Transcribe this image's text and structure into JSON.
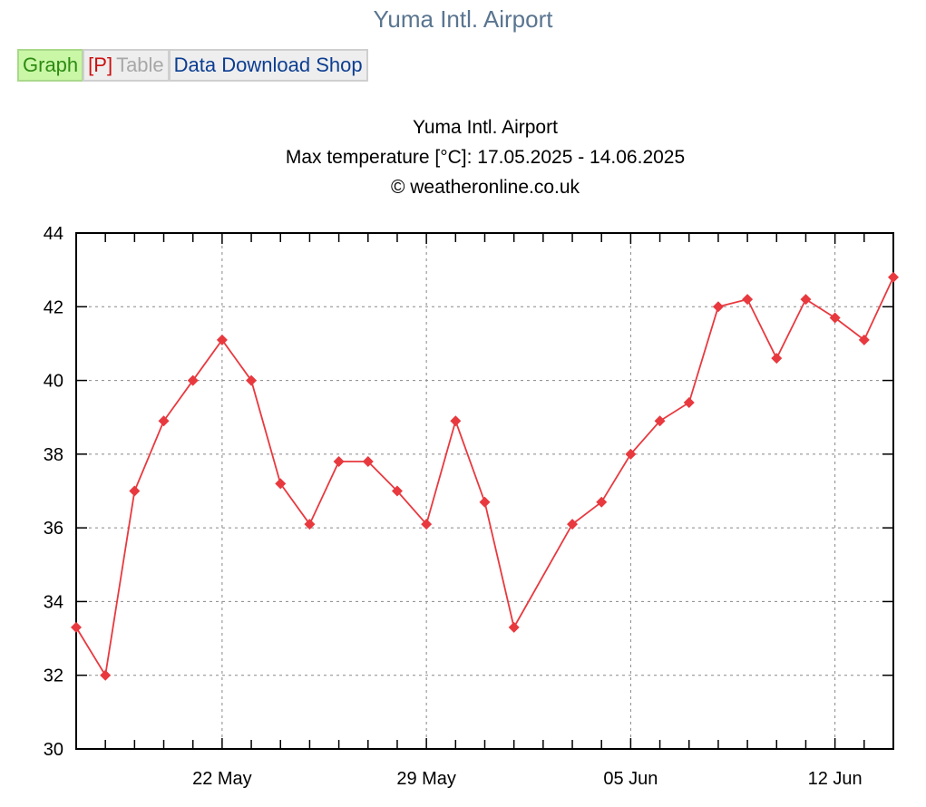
{
  "page": {
    "title": "Yuma Intl. Airport"
  },
  "tabs": [
    {
      "label": "Graph"
    },
    {
      "label": "[P]"
    },
    {
      "label": "Table"
    },
    {
      "label": "Data Download Shop"
    }
  ],
  "chart_data": {
    "type": "line",
    "title": "Yuma Intl. Airport",
    "subtitle": "Max temperature [°C]: 17.05.2025 - 14.06.2025",
    "credit": "© weatheronline.co.uk",
    "x": [
      "17.05",
      "18.05",
      "19.05",
      "20.05",
      "21.05",
      "22.05",
      "23.05",
      "24.05",
      "25.05",
      "26.05",
      "27.05",
      "28.05",
      "29.05",
      "30.05",
      "31.05",
      "01.06",
      "02.06",
      "03.06",
      "04.06",
      "05.06",
      "06.06",
      "07.06",
      "08.06",
      "09.06",
      "10.06",
      "11.06",
      "12.06",
      "13.06",
      "14.06"
    ],
    "series": [
      {
        "values": [
          33.3,
          32.0,
          37.0,
          38.9,
          40.0,
          41.1,
          40.0,
          37.2,
          36.1,
          37.8,
          37.8,
          37.0,
          36.1,
          38.9,
          36.7,
          33.3,
          null,
          36.1,
          36.7,
          38.0,
          38.9,
          39.4,
          42.0,
          42.2,
          40.6,
          42.2,
          41.7,
          41.1,
          42.8
        ]
      }
    ],
    "ylim": [
      30,
      44
    ],
    "yticks": [
      "30",
      "32",
      "34",
      "36",
      "38",
      "40",
      "42",
      "44"
    ],
    "xtick_labels": [
      {
        "index": 5,
        "label": "22 May"
      },
      {
        "index": 12,
        "label": "29 May"
      },
      {
        "index": 19,
        "label": "05 Jun"
      },
      {
        "index": 26,
        "label": "12 Jun"
      }
    ],
    "grid": true,
    "colors": {
      "series": "#e8393f",
      "grid": "#888888",
      "axis": "#000000"
    }
  }
}
